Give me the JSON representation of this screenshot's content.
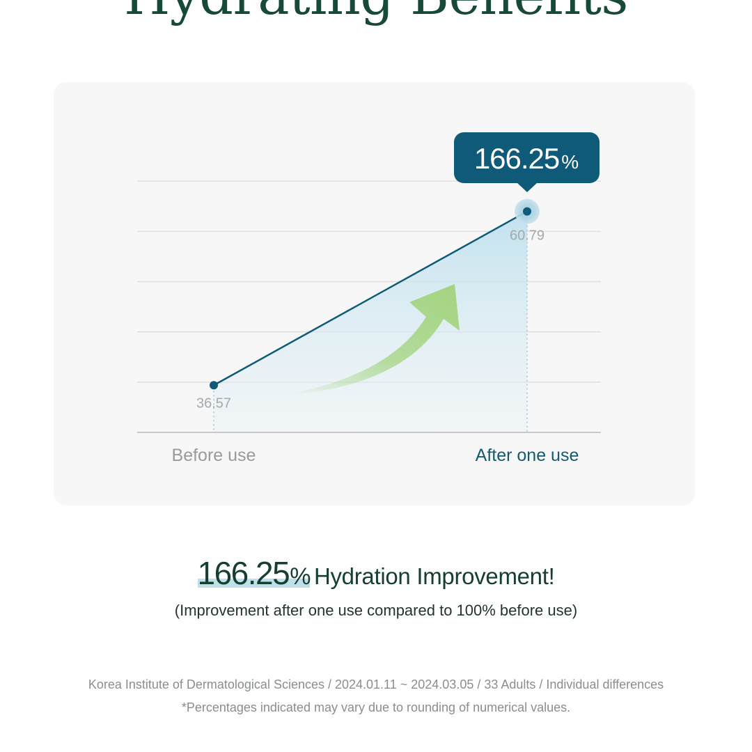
{
  "title": "Hydrating Benefits",
  "chart_data": {
    "type": "line",
    "categories": [
      "Before use",
      "After one use"
    ],
    "values": [
      36.57,
      60.79
    ],
    "value_labels": [
      "36.57",
      "60.79"
    ],
    "callout": {
      "value": "166.25",
      "unit": "%"
    },
    "grid": true,
    "ylim": [
      30,
      65
    ],
    "colors": {
      "line": "#0f5a78",
      "callout": "#0f5a78",
      "arrow": "#a3d47f",
      "area": "#bfe0ee",
      "grid": "#dedede",
      "before_label": "#9a9a9a",
      "after_label": "#125b73"
    }
  },
  "headline": {
    "value": "166.25",
    "unit": "%",
    "text": "Hydration Improvement!"
  },
  "subline": "(Improvement after one use compared to 100% before use)",
  "footnote": {
    "source": "Korea Institute of Dermatological Sciences / 2024.01.11 ~ 2024.03.05 / 33 Adults / Individual differences",
    "note": "*Percentages indicated may vary due to rounding of numerical values."
  }
}
